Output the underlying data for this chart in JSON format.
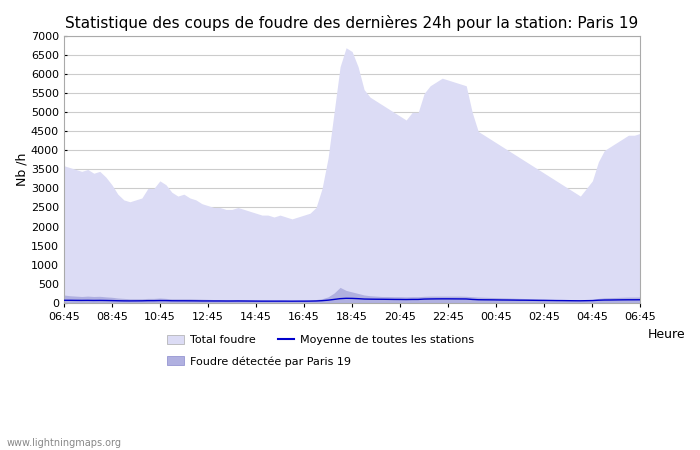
{
  "title": "Statistique des coups de foudre des dernières 24h pour la station: Paris 19",
  "xlabel": "Heure",
  "ylabel": "Nb /h",
  "watermark": "www.lightningmaps.org",
  "x_labels": [
    "06:45",
    "08:45",
    "10:45",
    "12:45",
    "14:45",
    "16:45",
    "18:45",
    "20:45",
    "22:45",
    "00:45",
    "02:45",
    "04:45",
    "06:45"
  ],
  "ylim": [
    0,
    7000
  ],
  "yticks": [
    0,
    500,
    1000,
    1500,
    2000,
    2500,
    3000,
    3500,
    4000,
    4500,
    5000,
    5500,
    6000,
    6500,
    7000
  ],
  "total_foudre_color": "#dcdcf5",
  "total_foudre_edge": "#dcdcf5",
  "paris19_color": "#b0b0e0",
  "paris19_edge": "#b0b0e0",
  "moyenne_color": "#0000cc",
  "background_color": "#ffffff",
  "grid_color": "#cccccc",
  "title_fontsize": 11,
  "figsize": [
    7.0,
    4.5
  ],
  "dpi": 100,
  "legend_items": [
    {
      "label": "Total foudre",
      "color": "#dcdcf5",
      "type": "fill"
    },
    {
      "label": "Moyenne de toutes les stations",
      "color": "#0000cc",
      "type": "line"
    },
    {
      "label": "Foudre détectée par Paris 19",
      "color": "#b0b0e0",
      "type": "fill"
    }
  ],
  "n_points": 97,
  "total_foudre": [
    3600,
    3550,
    3500,
    3450,
    3500,
    3400,
    3450,
    3300,
    3100,
    2850,
    2700,
    2650,
    2700,
    2750,
    3000,
    3000,
    3200,
    3100,
    2900,
    2800,
    2850,
    2750,
    2700,
    2600,
    2550,
    2500,
    2500,
    2450,
    2450,
    2500,
    2450,
    2400,
    2350,
    2300,
    2300,
    2250,
    2300,
    2250,
    2200,
    2250,
    2300,
    2350,
    2500,
    3000,
    3800,
    5000,
    6200,
    6700,
    6600,
    6200,
    5600,
    5400,
    5300,
    5200,
    5100,
    5000,
    4900,
    4800,
    5000,
    5000,
    5500,
    5700,
    5800,
    5900,
    5850,
    5800,
    5750,
    5700,
    5000,
    4500,
    4400,
    4300,
    4200,
    4100,
    4000,
    3900,
    3800,
    3700,
    3600,
    3500,
    3400,
    3300,
    3200,
    3100,
    3000,
    2900,
    2800,
    3000,
    3200,
    3700,
    4000,
    4100,
    4200,
    4300,
    4400,
    4400,
    4450
  ],
  "paris19": [
    200,
    180,
    170,
    160,
    170,
    160,
    165,
    150,
    140,
    120,
    110,
    100,
    100,
    100,
    110,
    110,
    120,
    110,
    100,
    100,
    100,
    100,
    95,
    90,
    85,
    80,
    80,
    75,
    75,
    80,
    75,
    70,
    65,
    60,
    60,
    55,
    60,
    55,
    50,
    55,
    60,
    65,
    80,
    100,
    150,
    250,
    400,
    320,
    280,
    240,
    200,
    180,
    170,
    160,
    160,
    155,
    155,
    150,
    155,
    155,
    165,
    170,
    170,
    170,
    170,
    170,
    170,
    165,
    155,
    145,
    140,
    135,
    130,
    125,
    120,
    115,
    110,
    105,
    100,
    95,
    90,
    85,
    80,
    75,
    70,
    65,
    60,
    70,
    80,
    110,
    125,
    130,
    135,
    140,
    145,
    145,
    148
  ],
  "moyenne": [
    60,
    60,
    58,
    57,
    58,
    56,
    57,
    55,
    52,
    48,
    45,
    44,
    45,
    46,
    50,
    50,
    53,
    52,
    48,
    47,
    47,
    46,
    45,
    43,
    43,
    42,
    42,
    41,
    41,
    42,
    41,
    40,
    39,
    38,
    38,
    38,
    38,
    38,
    37,
    38,
    38,
    39,
    42,
    50,
    63,
    83,
    103,
    112,
    110,
    103,
    93,
    90,
    88,
    87,
    85,
    83,
    82,
    80,
    83,
    83,
    92,
    95,
    97,
    98,
    98,
    97,
    96,
    95,
    83,
    75,
    73,
    72,
    70,
    68,
    67,
    65,
    63,
    62,
    60,
    58,
    57,
    55,
    53,
    52,
    50,
    48,
    47,
    50,
    53,
    62,
    67,
    68,
    70,
    72,
    73,
    73,
    74
  ]
}
